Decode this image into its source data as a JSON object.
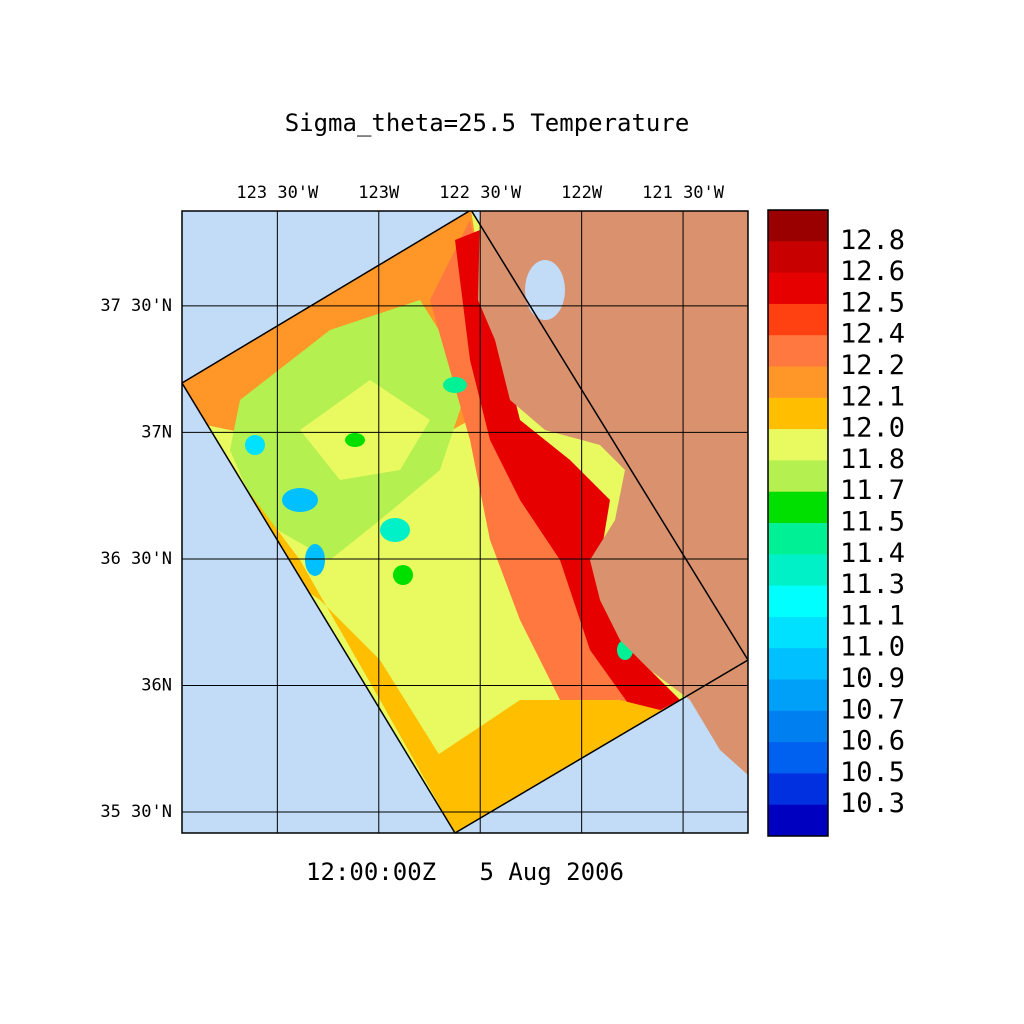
{
  "chart_data": {
    "type": "contour-map",
    "title": "Sigma_theta=25.5 Temperature",
    "time_label": "12:00:00Z   5 Aug 2006",
    "xlim": [
      -123.97,
      -121.18
    ],
    "xticks": [
      {
        "value": -123.5,
        "label": "123 30'W"
      },
      {
        "value": -123,
        "label": "123W"
      },
      {
        "value": -122.5,
        "label": "122 30'W"
      },
      {
        "value": -122,
        "label": "122W"
      },
      {
        "value": -121.5,
        "label": "121 30'W"
      }
    ],
    "ylim": [
      35.417,
      37.875
    ],
    "yticks": [
      {
        "value": 37.5,
        "label": "37 30'N"
      },
      {
        "value": 37,
        "label": "37N"
      },
      {
        "value": 36.5,
        "label": "36 30'N"
      },
      {
        "value": 36,
        "label": "36N"
      },
      {
        "value": 35.5,
        "label": "35 30'N"
      }
    ],
    "grid": true,
    "colorbar": {
      "levels": [
        12.8,
        12.6,
        12.5,
        12.4,
        12.2,
        12.1,
        {
          "value": 12.0,
          "label": "12.0"
        },
        11.8,
        11.7,
        11.5,
        11.4,
        11.3,
        11.1,
        {
          "value": 11.0,
          "label": "11.0"
        },
        10.9,
        10.7,
        10.6,
        10.5,
        10.3
      ],
      "colors": [
        "#9b0000",
        "#c80000",
        "#e60000",
        "#ff4010",
        "#ff7840",
        "#ff9628",
        "#ffbe00",
        "#e8fa60",
        "#b4f050",
        "#00e000",
        "#00f096",
        "#00f0c8",
        "#00ffff",
        "#00e0ff",
        "#00c0ff",
        "#00a0f8",
        "#0080f0",
        "#0060f0",
        "#0030e0",
        "#0000c0"
      ]
    }
  }
}
